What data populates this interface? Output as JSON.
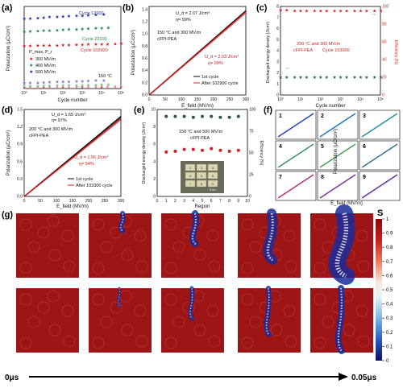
{
  "panel_labels": [
    "(a)",
    "(b)",
    "(c)",
    "(d)",
    "(e)",
    "(f)",
    "(g)"
  ],
  "panel_a": {
    "ylabel": "Polarization (μC/cm²)",
    "xlabel": "Cycle number",
    "cycle_labels": [
      "Cycle 12900",
      "Cycle 22100",
      "Cycle 102900"
    ],
    "legend_title": "P_max, P_r",
    "legend": [
      "300 MV/m",
      "400 MV/m",
      "500 MV/m"
    ],
    "temp": "150 °C",
    "x_ticks": [
      "10⁰",
      "10¹",
      "10²",
      "10³",
      "10⁴",
      "10⁵"
    ]
  },
  "panel_b": {
    "ud1": "U_d = 2.07 J/cm³",
    "eta1": "η= 99%",
    "ud2": "U_d = 2.03 J/cm³",
    "eta2": "η= 99%",
    "cond": "150 °C and 300 MV/m",
    "material": "cFPI-PEA",
    "legend": [
      "1st cycle",
      "After 102900 cycle"
    ],
    "ylabel": "Polarization (μC/cm²)",
    "xlabel": "E_field (MV/m)",
    "x_ticks": [
      "0",
      "50",
      "100",
      "150",
      "200",
      "250",
      "300"
    ],
    "y_ticks": [
      "0.0",
      "0.2",
      "0.4",
      "0.6",
      "0.8",
      "1.0",
      "1.2",
      "1.4"
    ]
  },
  "panel_c": {
    "cond": "200 °C and 300 MV/m",
    "material": "cFPI-PEA",
    "cycle": "Cycle 103000",
    "ylabel_left": "Discharged energy density (J/cm³)",
    "ylabel_right": "Efficiency (%)",
    "xlabel": "Cycle number",
    "x_ticks": [
      "10⁰",
      "10¹",
      "10²",
      "10³",
      "10⁴",
      "10⁵"
    ],
    "yl_ticks": [
      "0",
      "1",
      "2",
      "3",
      "4",
      "5",
      "6",
      "7",
      "8"
    ],
    "yr_ticks": [
      "0",
      "20",
      "40",
      "60",
      "80",
      "100"
    ]
  },
  "panel_d": {
    "ud1": "U_d = 1.65 J/cm³",
    "eta1": "η= 97%",
    "ud2": "U_d = 1.56 J/cm³",
    "eta2": "η= 94%",
    "cond": "200 °C and 300 MV/m",
    "material": "cFPI-PEA",
    "legend": [
      "1st cycle",
      "After 103300 cycle"
    ],
    "ylabel": "Polarization (μC/cm²)",
    "xlabel": "E_field (MV/m)",
    "x_ticks": [
      "0",
      "50",
      "100",
      "150",
      "200",
      "250",
      "300"
    ],
    "y_ticks": [
      "0.0",
      "0.3",
      "0.6",
      "0.9",
      "1.2",
      "1.5"
    ]
  },
  "panel_e": {
    "cond": "150 °C and 500 MV/m",
    "material": "cFPI-PEA",
    "ylabel_left": "Discharged energy density (J/cm³)",
    "ylabel_right": "Efficiency (%)",
    "xlabel": "Region",
    "x_ticks": [
      "0",
      "1",
      "2",
      "3",
      "4",
      "5",
      "6",
      "7",
      "8",
      "9",
      "10"
    ],
    "yl_ticks": [
      "0",
      "2",
      "4",
      "6",
      "8",
      "10"
    ],
    "yr_ticks": [
      "0",
      "25",
      "50",
      "75",
      "100"
    ],
    "scale": "5 cm",
    "grid_numbers": [
      "1",
      "2",
      "3",
      "4",
      "5",
      "6",
      "7",
      "8",
      "9"
    ]
  },
  "panel_f": {
    "numbers": [
      "1",
      "2",
      "3",
      "4",
      "5",
      "6",
      "7",
      "8",
      "9"
    ],
    "ylabel": "Polarization (μC/cm²)",
    "xlabel": "E_field (MV/m)",
    "colors": [
      "#1f3fbf",
      "#1f6fbf",
      "#1f8f9f",
      "#2f8f6f",
      "#3f9f4f",
      "#2f6f8f",
      "#b02f6f",
      "#7f2fa0",
      "#5f2f9f"
    ]
  },
  "panel_g": {
    "colorbar_title": "S",
    "colorbar_ticks": [
      "1",
      "0.9",
      "0.8",
      "0.7",
      "0.6",
      "0.5",
      "0.4",
      "0.3",
      "0.2",
      "0.1",
      "0"
    ],
    "time_start": "0μs",
    "time_end": "0.05μs"
  },
  "chart_data": [
    {
      "type": "scatter",
      "panel": "a",
      "xlabel": "Cycle number",
      "ylabel": "Polarization (μC/cm²)",
      "x_scale": "log",
      "xlim": [
        1,
        100000
      ],
      "ylim": [
        0,
        2.7
      ],
      "series": [
        {
          "name": "500 MV/m",
          "x": [
            1,
            2,
            5,
            10,
            20,
            50,
            100,
            200,
            500,
            1000,
            2000,
            5000,
            12900
          ],
          "y": [
            2.3,
            2.3,
            2.32,
            2.33,
            2.35,
            2.36,
            2.37,
            2.38,
            2.39,
            2.4,
            2.41,
            2.42,
            2.43
          ]
        },
        {
          "name": "400 MV/m",
          "x": [
            1,
            2,
            5,
            10,
            20,
            50,
            100,
            200,
            500,
            1000,
            2000,
            5000,
            10000,
            22100
          ],
          "y": [
            1.88,
            1.88,
            1.89,
            1.9,
            1.91,
            1.92,
            1.93,
            1.94,
            1.95,
            1.96,
            1.97,
            1.98,
            1.99,
            2.0
          ]
        },
        {
          "name": "300 MV/m",
          "x": [
            1,
            2,
            5,
            10,
            20,
            50,
            100,
            200,
            500,
            1000,
            2000,
            5000,
            10000,
            20000,
            50000,
            102900
          ],
          "y": [
            1.4,
            1.4,
            1.41,
            1.41,
            1.42,
            1.42,
            1.43,
            1.43,
            1.44,
            1.44,
            1.45,
            1.45,
            1.46,
            1.46,
            1.47,
            1.48
          ]
        },
        {
          "name": "500 MV/m Pr",
          "x": [
            1,
            2,
            5,
            10,
            20,
            50,
            100,
            200,
            500,
            1000,
            2000,
            5000,
            12900
          ],
          "y": [
            0.18,
            0.18,
            0.19,
            0.2,
            0.21,
            0.22,
            0.22,
            0.23,
            0.24,
            0.24,
            0.25,
            0.26,
            0.27
          ]
        },
        {
          "name": "400 MV/m Pr",
          "x": [
            1,
            2,
            5,
            10,
            20,
            50,
            100,
            200,
            500,
            1000,
            2000,
            5000,
            10000,
            22100
          ],
          "y": [
            0.08,
            0.08,
            0.08,
            0.09,
            0.09,
            0.1,
            0.1,
            0.1,
            0.11,
            0.11,
            0.12,
            0.12,
            0.13,
            0.13
          ]
        },
        {
          "name": "300 MV/m Pr",
          "x": [
            1,
            2,
            5,
            10,
            20,
            50,
            100,
            200,
            500,
            1000,
            2000,
            5000,
            10000,
            20000,
            50000,
            102900
          ],
          "y": [
            0.03,
            0.03,
            0.03,
            0.03,
            0.04,
            0.04,
            0.04,
            0.04,
            0.05,
            0.05,
            0.05,
            0.05,
            0.06,
            0.06,
            0.06,
            0.07
          ]
        }
      ]
    },
    {
      "type": "line",
      "panel": "b",
      "xlim": [
        0,
        300
      ],
      "ylim": [
        0,
        1.45
      ],
      "series": [
        {
          "name": "1st cycle",
          "x": [
            0,
            300
          ],
          "y": [
            0,
            1.38
          ]
        },
        {
          "name": "After 102900 cycle",
          "x": [
            0,
            300
          ],
          "y": [
            0,
            1.36
          ]
        }
      ]
    },
    {
      "type": "scatter",
      "panel": "c",
      "x_scale": "log",
      "xlim": [
        1,
        100000
      ],
      "ylim_left": [
        0,
        8
      ],
      "ylim_right": [
        0,
        100
      ],
      "series": [
        {
          "name": "Discharged energy density",
          "axis": "left",
          "x": [
            1,
            2,
            5,
            10,
            20,
            50,
            100,
            200,
            500,
            1000,
            2000,
            5000,
            10000,
            20000,
            50000,
            103000
          ],
          "y": [
            1.6,
            1.6,
            1.6,
            1.6,
            1.6,
            1.6,
            1.6,
            1.6,
            1.6,
            1.6,
            1.6,
            1.6,
            1.6,
            1.6,
            1.6,
            1.6
          ]
        },
        {
          "name": "Efficiency",
          "axis": "right",
          "x": [
            1,
            2,
            5,
            10,
            20,
            50,
            100,
            200,
            500,
            1000,
            2000,
            5000,
            10000,
            20000,
            50000,
            103000
          ],
          "y": [
            96,
            96,
            95,
            95,
            95,
            95,
            95,
            95,
            95,
            95,
            95,
            95,
            95,
            95,
            95,
            95
          ]
        }
      ]
    },
    {
      "type": "line",
      "panel": "d",
      "xlim": [
        0,
        300
      ],
      "ylim": [
        0,
        1.5
      ],
      "series": [
        {
          "name": "1st cycle",
          "x": [
            0,
            300
          ],
          "y": [
            0,
            1.38
          ]
        },
        {
          "name": "After 103300 cycle",
          "x": [
            0,
            300
          ],
          "y": [
            0,
            1.34
          ]
        }
      ]
    },
    {
      "type": "scatter",
      "panel": "e",
      "xlim": [
        0,
        10
      ],
      "ylim_left": [
        0,
        10
      ],
      "ylim_right": [
        0,
        100
      ],
      "series": [
        {
          "name": "Discharged energy density",
          "axis": "left",
          "x": [
            1,
            2,
            3,
            4,
            5,
            6,
            7,
            8,
            9
          ],
          "y": [
            5.1,
            5.2,
            5.4,
            5.4,
            5.3,
            5.5,
            5.3,
            5.2,
            5.3
          ]
        },
        {
          "name": "Efficiency",
          "axis": "right",
          "x": [
            1,
            2,
            3,
            4,
            5,
            6,
            7,
            8,
            9
          ],
          "y": [
            92,
            92,
            92,
            91,
            92,
            92,
            91,
            91,
            92
          ]
        }
      ]
    }
  ]
}
